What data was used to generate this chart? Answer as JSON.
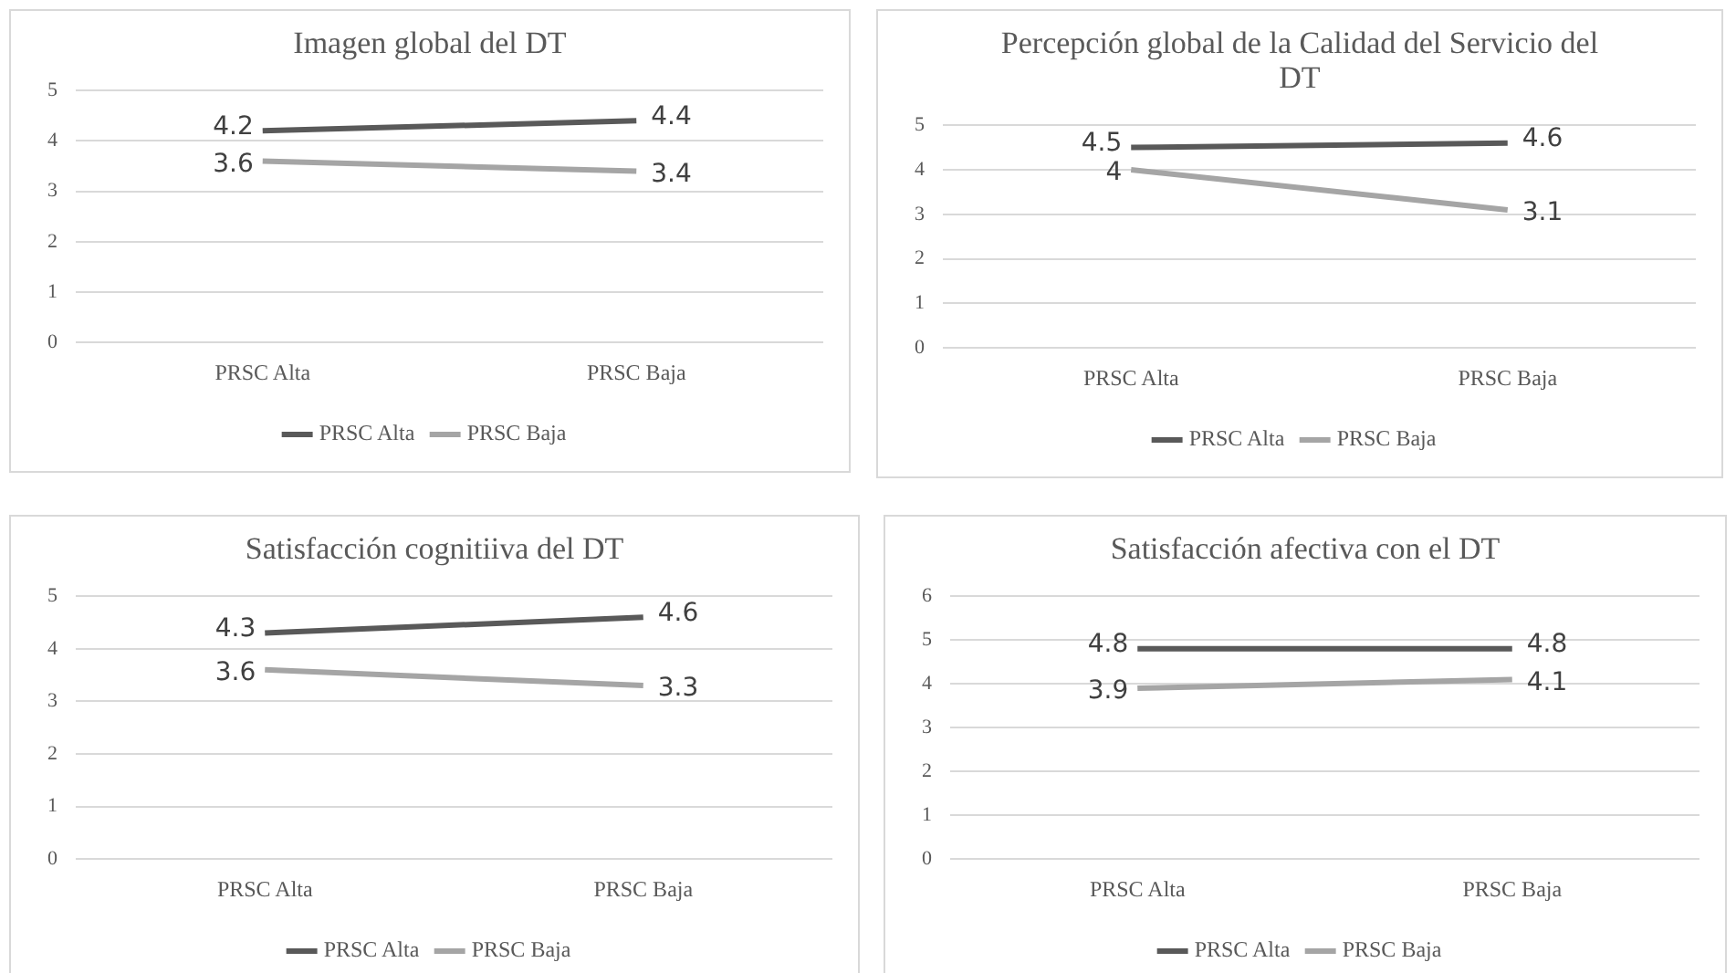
{
  "chart_data": [
    {
      "type": "line",
      "title": "Imagen global del DT",
      "categories": [
        "PRSC Alta",
        "PRSC Baja"
      ],
      "series": [
        {
          "name": "PRSC Alta",
          "color": "#595959",
          "values": [
            4.2,
            4.4
          ]
        },
        {
          "name": "PRSC Baja",
          "color": "#a5a5a5",
          "values": [
            3.6,
            3.4
          ]
        }
      ],
      "ylim": [
        0,
        5
      ],
      "yticks": [
        0,
        1,
        2,
        3,
        4,
        5
      ],
      "grid": "y",
      "legend": "bottom",
      "data_labels": true,
      "marker": "none"
    },
    {
      "type": "line",
      "title": "Percepción global de la Calidad del Servicio del DT",
      "categories": [
        "PRSC Alta",
        "PRSC Baja"
      ],
      "series": [
        {
          "name": "PRSC Alta",
          "color": "#595959",
          "values": [
            4.5,
            4.6
          ]
        },
        {
          "name": "PRSC Baja",
          "color": "#a5a5a5",
          "values": [
            4,
            3.1
          ]
        }
      ],
      "ylim": [
        0,
        5
      ],
      "yticks": [
        0,
        1,
        2,
        3,
        4,
        5
      ],
      "grid": "y",
      "legend": "bottom",
      "data_labels": true,
      "marker": "none"
    },
    {
      "type": "line",
      "title": "Satisfacción cognitiiva del DT",
      "categories": [
        "PRSC Alta",
        "PRSC Baja"
      ],
      "series": [
        {
          "name": "PRSC Alta",
          "color": "#595959",
          "values": [
            4.3,
            4.6
          ]
        },
        {
          "name": "PRSC Baja",
          "color": "#a5a5a5",
          "values": [
            3.6,
            3.3
          ]
        }
      ],
      "ylim": [
        0,
        5
      ],
      "yticks": [
        0,
        1,
        2,
        3,
        4,
        5
      ],
      "grid": "y",
      "legend": "bottom",
      "data_labels": true,
      "marker": "none"
    },
    {
      "type": "line",
      "title": "Satisfacción afectiva con el DT",
      "categories": [
        "PRSC Alta",
        "PRSC Baja"
      ],
      "series": [
        {
          "name": "PRSC Alta",
          "color": "#595959",
          "values": [
            4.8,
            4.8
          ]
        },
        {
          "name": "PRSC Baja",
          "color": "#a5a5a5",
          "values": [
            3.9,
            4.1
          ]
        }
      ],
      "ylim": [
        0,
        6
      ],
      "yticks": [
        0,
        1,
        2,
        3,
        4,
        5,
        6
      ],
      "grid": "y",
      "legend": "bottom",
      "data_labels": true,
      "marker": "none"
    }
  ]
}
